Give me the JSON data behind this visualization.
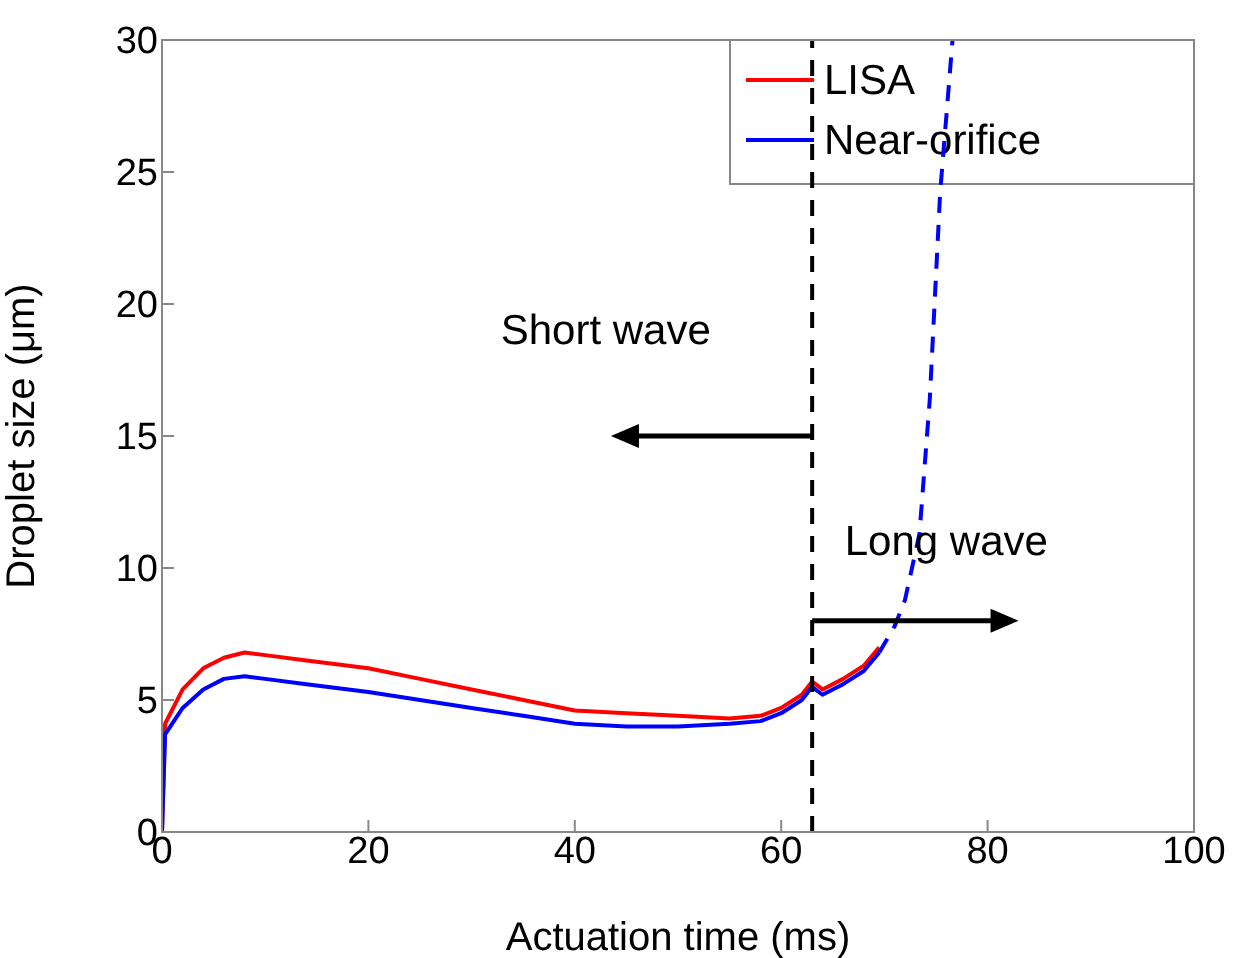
{
  "chart_data": {
    "type": "line",
    "xlabel": "Actuation time (ms)",
    "ylabel": "Droplet size (μm)",
    "xlim": [
      0,
      100
    ],
    "xticks": [
      0,
      20,
      40,
      60,
      80,
      100
    ],
    "ylim": [
      0,
      30
    ],
    "yticks": [
      0,
      5,
      10,
      15,
      20,
      25,
      30
    ],
    "grid": false,
    "legend": "top right",
    "marker": "none",
    "series": [
      {
        "name": "LISA",
        "color": "#ff0000",
        "x": [
          0,
          0.3,
          2,
          4,
          6,
          8,
          10,
          14,
          20,
          25,
          30,
          35,
          40,
          45,
          50,
          55,
          58,
          60,
          62,
          63,
          64,
          66,
          68,
          69.5
        ],
        "values": [
          0,
          4.1,
          5.4,
          6.2,
          6.6,
          6.8,
          6.7,
          6.5,
          6.2,
          5.8,
          5.4,
          5,
          4.6,
          4.5,
          4.4,
          4.3,
          4.4,
          4.7,
          5.2,
          5.7,
          5.4,
          5.8,
          6.3,
          7
        ]
      },
      {
        "name": "Near-orifice",
        "color": "#0000ff",
        "x": [
          0,
          0.3,
          2,
          4,
          6,
          8,
          10,
          14,
          20,
          25,
          30,
          35,
          40,
          45,
          50,
          55,
          58,
          60,
          62,
          63,
          64,
          66,
          68,
          69.5
        ],
        "values": [
          0,
          3.7,
          4.7,
          5.4,
          5.8,
          5.9,
          5.8,
          5.6,
          5.3,
          5,
          4.7,
          4.4,
          4.1,
          4,
          4,
          4.1,
          4.2,
          4.5,
          5,
          5.5,
          5.2,
          5.6,
          6.1,
          6.8
        ]
      },
      {
        "color": "#0000ff",
        "line_style": "dashed",
        "x": [
          69.5,
          71,
          72,
          73.4,
          74.4,
          75.4,
          76.6
        ],
        "values": [
          6.8,
          7.8,
          8.8,
          11.3,
          16.4,
          24.2,
          30
        ]
      }
    ],
    "ref_lines": [
      {
        "axis": "x",
        "value": 63,
        "color": "#000000",
        "line_style": "dashed"
      }
    ],
    "annotations": [
      "Short wave",
      "Long wave"
    ]
  }
}
